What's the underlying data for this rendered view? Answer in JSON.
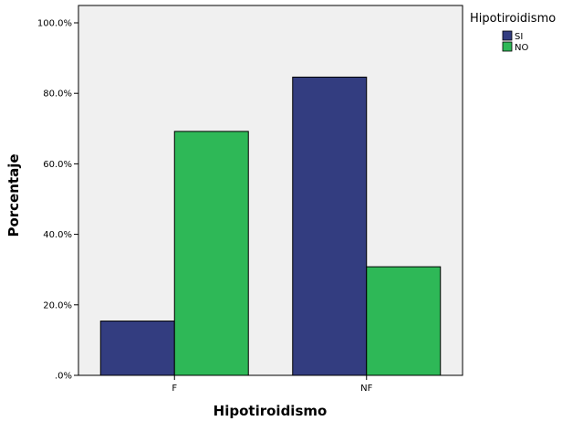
{
  "chart_data": {
    "type": "bar",
    "title": "",
    "xlabel": "Hipotiroidismo",
    "ylabel": "Porcentaje",
    "categories": [
      "F",
      "NF"
    ],
    "series": [
      {
        "name": "SI",
        "values": [
          15.4,
          84.6
        ],
        "color": "#333d80"
      },
      {
        "name": "NO",
        "values": [
          69.2,
          30.8
        ],
        "color": "#2eb857"
      }
    ],
    "ylim": [
      0,
      100
    ],
    "yticks": [
      ".0%",
      "20.0%",
      "40.0%",
      "60.0%",
      "80.0%",
      "100.0%"
    ],
    "grid": false,
    "legend": {
      "title": "Hipotiroidismo",
      "placement": "top-right"
    },
    "plot_background": "#f0f0f0"
  }
}
